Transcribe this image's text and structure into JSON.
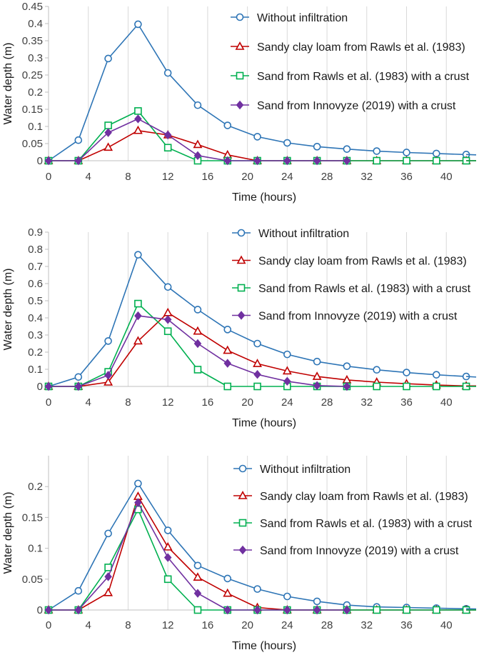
{
  "chart_data": [
    {
      "type": "line",
      "xlabel": "Time (hours)",
      "ylabel": "Water depth (m)",
      "xlim": [
        0,
        43
      ],
      "ylim": [
        0,
        0.45
      ],
      "yticks": [
        0,
        0.05,
        0.1,
        0.15,
        0.2,
        0.25,
        0.3,
        0.35,
        0.4,
        0.45
      ],
      "ytick_labels": [
        "0",
        "0.05",
        "0.1",
        "0.15",
        "0.2",
        "0.25",
        "0.3",
        "0.35",
        "0.4",
        "0.45"
      ],
      "xticks": [
        0,
        4,
        8,
        12,
        16,
        20,
        24,
        28,
        32,
        36,
        40
      ],
      "xtick_labels": [
        "0",
        "4",
        "8",
        "12",
        "16",
        "20",
        "24",
        "28",
        "32",
        "36",
        "40"
      ],
      "legend_position": "top-right",
      "grid": "vertical",
      "series": [
        {
          "name": "Without infiltration",
          "color": "#2e75b6",
          "marker": "circle",
          "x": [
            0,
            3,
            6,
            9,
            12,
            15,
            18,
            21,
            24,
            27,
            30,
            33,
            36,
            39,
            42
          ],
          "y": [
            0,
            0.06,
            0.298,
            0.398,
            0.256,
            0.162,
            0.103,
            0.07,
            0.052,
            0.041,
            0.034,
            0.028,
            0.024,
            0.021,
            0.018
          ]
        },
        {
          "name": "Sandy clay loam from Rawls et al. (1983)",
          "color": "#c00000",
          "marker": "triangle",
          "x": [
            0,
            3,
            6,
            9,
            12,
            15,
            18,
            21,
            24,
            27,
            30,
            33,
            36,
            39,
            42
          ],
          "y": [
            0,
            0,
            0.039,
            0.088,
            0.075,
            0.047,
            0.017,
            0,
            0,
            0,
            0,
            0,
            0,
            0,
            0
          ]
        },
        {
          "name": "Sand from Rawls et al. (1983) with a crust",
          "color": "#00b050",
          "marker": "square",
          "x": [
            0,
            3,
            6,
            9,
            12,
            15,
            18,
            21,
            24,
            27,
            30,
            33,
            36,
            39,
            42
          ],
          "y": [
            0,
            0,
            0.103,
            0.145,
            0.038,
            0,
            0,
            0,
            0,
            0,
            0,
            0,
            0,
            0,
            0
          ]
        },
        {
          "name": "Sand from Innovyze (2019) with a crust",
          "color": "#7030a0",
          "marker": "diamond",
          "x": [
            0,
            3,
            6,
            9,
            12,
            15,
            18,
            21,
            24,
            27,
            30
          ],
          "y": [
            0,
            0,
            0.082,
            0.122,
            0.075,
            0.015,
            0,
            0,
            0,
            0,
            0
          ]
        }
      ]
    },
    {
      "type": "line",
      "xlabel": "Time (hours)",
      "ylabel": "Water depth (m)",
      "xlim": [
        0,
        43
      ],
      "ylim": [
        0,
        0.9
      ],
      "yticks": [
        0,
        0.1,
        0.2,
        0.3,
        0.4,
        0.5,
        0.6,
        0.7,
        0.8,
        0.9
      ],
      "ytick_labels": [
        "0",
        "0.1",
        "0.2",
        "0.3",
        "0.4",
        "0.5",
        "0.6",
        "0.7",
        "0.8",
        "0.9"
      ],
      "xticks": [
        0,
        4,
        8,
        12,
        16,
        20,
        24,
        28,
        32,
        36,
        40
      ],
      "xtick_labels": [
        "0",
        "4",
        "8",
        "12",
        "16",
        "20",
        "24",
        "28",
        "32",
        "36",
        "40"
      ],
      "legend_position": "top-right",
      "grid": "vertical",
      "series": [
        {
          "name": "Without infiltration",
          "color": "#2e75b6",
          "marker": "circle",
          "x": [
            0,
            3,
            6,
            9,
            12,
            15,
            18,
            21,
            24,
            27,
            30,
            33,
            36,
            39,
            42
          ],
          "y": [
            0,
            0.055,
            0.265,
            0.768,
            0.58,
            0.448,
            0.332,
            0.25,
            0.187,
            0.145,
            0.118,
            0.097,
            0.081,
            0.068,
            0.058
          ]
        },
        {
          "name": "Sandy clay loam from Rawls et al. (1983)",
          "color": "#c00000",
          "marker": "triangle",
          "x": [
            0,
            3,
            6,
            9,
            12,
            15,
            18,
            21,
            24,
            27,
            30,
            33,
            36,
            39,
            42
          ],
          "y": [
            0,
            0,
            0.025,
            0.265,
            0.43,
            0.322,
            0.21,
            0.133,
            0.09,
            0.058,
            0.038,
            0.025,
            0.016,
            0.008,
            0.003
          ]
        },
        {
          "name": "Sand from Rawls et al. (1983) with a crust",
          "color": "#00b050",
          "marker": "square",
          "x": [
            0,
            3,
            6,
            9,
            12,
            15,
            18,
            21,
            24,
            27,
            30,
            33,
            36,
            39,
            42
          ],
          "y": [
            0,
            0,
            0.085,
            0.483,
            0.322,
            0.098,
            0,
            0,
            0,
            0,
            0,
            0,
            0,
            0,
            0
          ]
        },
        {
          "name": "Sand from Innovyze (2019) with a crust",
          "color": "#7030a0",
          "marker": "diamond",
          "x": [
            0,
            3,
            6,
            9,
            12,
            15,
            18,
            21,
            24,
            27,
            30
          ],
          "y": [
            0,
            0,
            0.065,
            0.412,
            0.39,
            0.25,
            0.135,
            0.07,
            0.03,
            0.005,
            0
          ]
        }
      ]
    },
    {
      "type": "line",
      "xlabel": "Time (hours)",
      "ylabel": "Water depth (m)",
      "xlim": [
        0,
        43
      ],
      "ylim": [
        0,
        0.25
      ],
      "yticks": [
        0,
        0.05,
        0.1,
        0.15,
        0.2
      ],
      "ytick_labels": [
        "0",
        "0.05",
        "0.1",
        "0.15",
        "0.2"
      ],
      "xticks": [
        0,
        4,
        8,
        12,
        16,
        20,
        24,
        28,
        32,
        36,
        40
      ],
      "xtick_labels": [
        "0",
        "4",
        "8",
        "12",
        "16",
        "20",
        "24",
        "28",
        "32",
        "36",
        "40"
      ],
      "legend_position": "top-right",
      "grid": "vertical",
      "series": [
        {
          "name": "Without infiltration",
          "color": "#2e75b6",
          "marker": "circle",
          "x": [
            0,
            3,
            6,
            9,
            12,
            15,
            18,
            21,
            24,
            27,
            30,
            33,
            36,
            39,
            42
          ],
          "y": [
            0,
            0.031,
            0.124,
            0.205,
            0.129,
            0.072,
            0.051,
            0.034,
            0.022,
            0.014,
            0.008,
            0.005,
            0.004,
            0.003,
            0.002
          ]
        },
        {
          "name": "Sandy clay loam from Rawls et al. (1983)",
          "color": "#c00000",
          "marker": "triangle",
          "x": [
            0,
            3,
            6,
            9,
            12,
            15,
            18,
            21,
            24,
            27,
            30,
            33,
            36,
            39,
            42
          ],
          "y": [
            0,
            0,
            0.028,
            0.184,
            0.102,
            0.053,
            0.027,
            0.004,
            0,
            0,
            0,
            0,
            0,
            0,
            0
          ]
        },
        {
          "name": "Sand from Rawls et al. (1983) with a crust",
          "color": "#00b050",
          "marker": "square",
          "x": [
            0,
            3,
            6,
            9,
            12,
            15,
            18,
            21,
            24,
            27,
            30,
            33,
            36,
            39,
            42
          ],
          "y": [
            0,
            0,
            0.069,
            0.163,
            0.05,
            0,
            0,
            0,
            0,
            0,
            0,
            0,
            0,
            0,
            0
          ]
        },
        {
          "name": "Sand from Innovyze (2019) with a crust",
          "color": "#7030a0",
          "marker": "diamond",
          "x": [
            0,
            3,
            6,
            9,
            12,
            15,
            18,
            21,
            24,
            27,
            30
          ],
          "y": [
            0,
            0,
            0.054,
            0.174,
            0.085,
            0.027,
            0,
            0,
            0,
            0,
            0
          ]
        }
      ]
    }
  ]
}
